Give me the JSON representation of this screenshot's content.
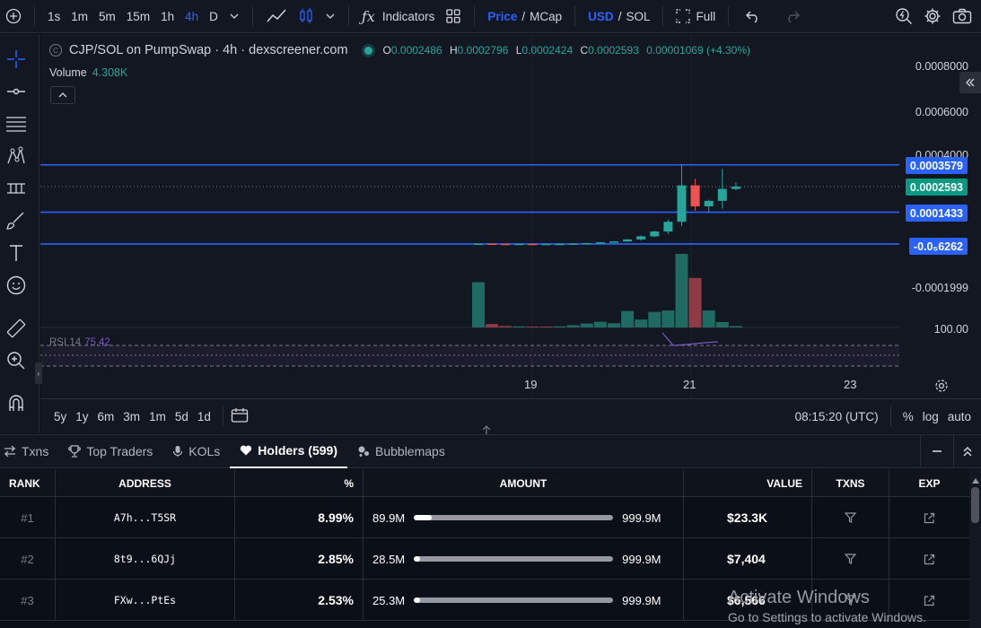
{
  "toolbar": {
    "add_icon": "plus-circle-icon",
    "intervals": [
      "1s",
      "1m",
      "5m",
      "15m",
      "1h",
      "4h",
      "D"
    ],
    "active_interval": "4h",
    "indicators_label": "Indicators",
    "price_label": "Price",
    "mcap_label": "MCap",
    "usd_label": "USD",
    "sol_label": "SOL",
    "full_label": "Full",
    "slash": "/"
  },
  "chart": {
    "pair_title": "CJP/SOL on PumpSwap · 4h · dexscreener.com",
    "logo_letter": "C",
    "ohlc": {
      "o_label": "O",
      "o": "0.0002486",
      "h_label": "H",
      "h": "0.0002796",
      "l_label": "L",
      "l": "0.0002424",
      "c_label": "C",
      "c": "0.0002593",
      "change": "0.00001069 (+4.30%)"
    },
    "volume_label": "Volume",
    "volume_value": "4.308K",
    "rsi_label": "RSI 14",
    "rsi_value": "75.42",
    "price_axis": [
      "0.0008000",
      "0.0006000",
      "0.0004000",
      "-0.0001999",
      "100.00"
    ],
    "price_tags": {
      "upper": "0.0003579",
      "current": "0.0002593",
      "lower": "0.0001433",
      "bottom": "-0.0₅6262"
    },
    "time_axis": [
      "19",
      "21",
      "23"
    ],
    "ranges": [
      "5y",
      "1y",
      "6m",
      "3m",
      "1m",
      "5d",
      "1d"
    ],
    "clock": "08:15:20 (UTC)",
    "pct_label": "%",
    "log_label": "log",
    "auto_label": "auto"
  },
  "chart_data": {
    "type": "bar",
    "candles": [
      {
        "o": 1e-06,
        "h": 2e-06,
        "l": 5e-07,
        "c": 1.2e-06
      },
      {
        "o": 1.2e-06,
        "h": 1.8e-06,
        "l": 2e-07,
        "c": 4e-07
      },
      {
        "o": 4e-07,
        "h": 8e-07,
        "l": 1e-07,
        "c": 2e-07
      },
      {
        "o": 2e-07,
        "h": 5e-07,
        "l": 1e-07,
        "c": 3e-07
      },
      {
        "o": 3e-07,
        "h": 4e-07,
        "l": 1e-07,
        "c": 2e-07
      },
      {
        "o": 2e-07,
        "h": 3e-07,
        "l": 1e-07,
        "c": 2e-07
      },
      {
        "o": 2e-07,
        "h": 4e-07,
        "l": 1e-07,
        "c": 3e-07
      },
      {
        "o": 3e-07,
        "h": 2e-06,
        "l": 2e-07,
        "c": 1.5e-06
      },
      {
        "o": 1.5e-06,
        "h": 4e-06,
        "l": 1e-06,
        "c": 3.5e-06
      },
      {
        "o": 3.5e-06,
        "h": 8e-06,
        "l": 3e-06,
        "c": 7e-06
      },
      {
        "o": 7e-06,
        "h": 1.3e-05,
        "l": 5e-06,
        "c": 1.1e-05
      },
      {
        "o": 1.1e-05,
        "h": 2.2e-05,
        "l": 9e-06,
        "c": 2e-05
      },
      {
        "o": 2e-05,
        "h": 3.8e-05,
        "l": 1.5e-05,
        "c": 3.4e-05
      },
      {
        "o": 3.4e-05,
        "h": 6e-05,
        "l": 3e-05,
        "c": 5.6e-05
      },
      {
        "o": 5.6e-05,
        "h": 0.00011,
        "l": 4.5e-05,
        "c": 0.0001
      },
      {
        "o": 0.0001,
        "h": 0.00036,
        "l": 8e-05,
        "c": 0.000265
      },
      {
        "o": 0.000265,
        "h": 0.000295,
        "l": 0.00015,
        "c": 0.00017
      },
      {
        "o": 0.00017,
        "h": 0.0002,
        "l": 0.00014,
        "c": 0.000195
      },
      {
        "o": 0.000195,
        "h": 0.00034,
        "l": 0.00016,
        "c": 0.000249
      },
      {
        "o": 0.0002486,
        "h": 0.0002796,
        "l": 0.0002424,
        "c": 0.0002593
      }
    ],
    "volumes": [
      1.6,
      0.12,
      0.05,
      0.04,
      0.03,
      0.03,
      0.04,
      0.08,
      0.14,
      0.2,
      0.15,
      0.58,
      0.28,
      0.55,
      0.6,
      2.6,
      1.75,
      0.6,
      0.19,
      0.05
    ],
    "volume_up": [
      true,
      false,
      false,
      true,
      false,
      false,
      true,
      true,
      true,
      true,
      true,
      true,
      true,
      true,
      true,
      true,
      false,
      true,
      true,
      true
    ],
    "horizontal_levels": [
      0.0003579,
      0.0001433,
      -6.26e-07
    ],
    "ylim": [
      -0.00026,
      0.00085
    ]
  },
  "panel": {
    "tabs": [
      {
        "label": "Txns",
        "icon": "arrows-icon"
      },
      {
        "label": "Top Traders",
        "icon": "trophy-icon"
      },
      {
        "label": "KOLs",
        "icon": "microphone-icon"
      },
      {
        "label": "Holders (599)",
        "icon": "heart-icon"
      },
      {
        "label": "Bubblemaps",
        "icon": "bubbles-icon"
      }
    ],
    "columns": {
      "rank": "RANK",
      "address": "ADDRESS",
      "pct": "%",
      "amount": "AMOUNT",
      "value": "VALUE",
      "txns": "TXNS",
      "exp": "EXP"
    },
    "rows": [
      {
        "rank": "#1",
        "address": "A7h...T5SR",
        "pct": "8.99%",
        "amount": "89.9M",
        "total": "999.9M",
        "fill": 0.0899,
        "value": "$23.3K"
      },
      {
        "rank": "#2",
        "address": "8t9...6QJj",
        "pct": "2.85%",
        "amount": "28.5M",
        "total": "999.9M",
        "fill": 0.0285,
        "value": "$7,404"
      },
      {
        "rank": "#3",
        "address": "FXw...PtEs",
        "pct": "2.53%",
        "amount": "25.3M",
        "total": "999.9M",
        "fill": 0.0253,
        "value": "$6,566"
      }
    ]
  },
  "watermark": {
    "line1": "Activate Windows",
    "line2": "Go to Settings to activate Windows."
  }
}
